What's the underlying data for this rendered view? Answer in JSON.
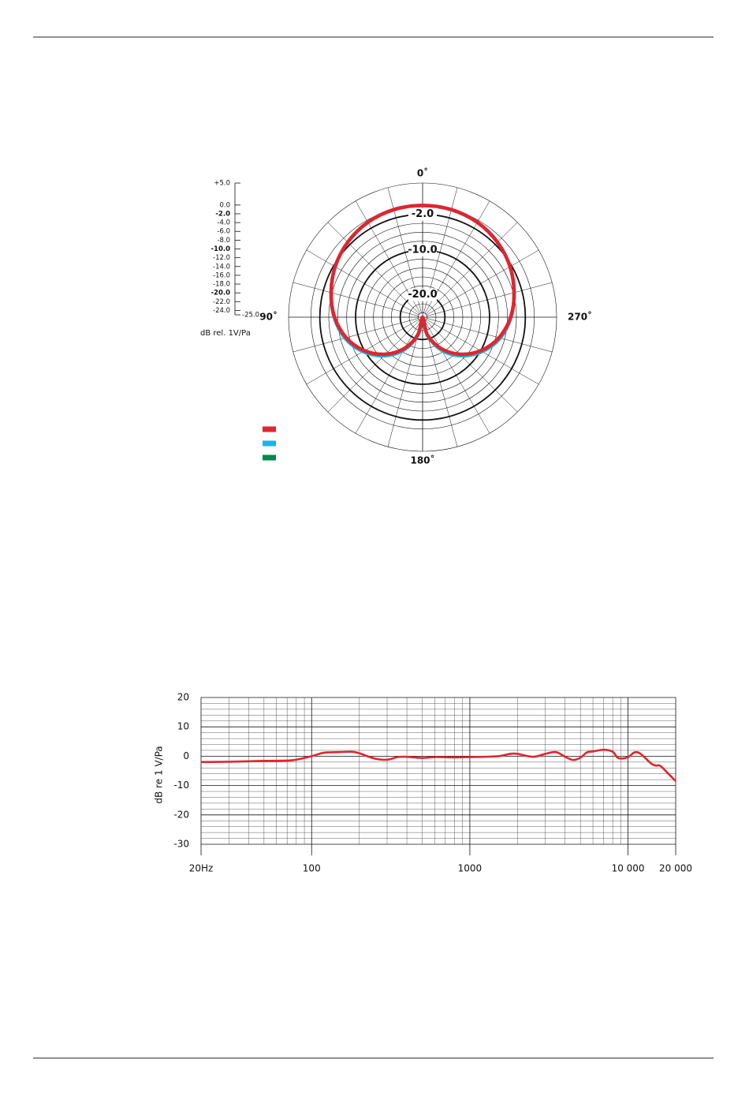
{
  "chart_data": [
    {
      "type": "polar",
      "theta": [
        0,
        15,
        30,
        45,
        60,
        75,
        90,
        105,
        120,
        135,
        150,
        165,
        180,
        195,
        210,
        225,
        240,
        255,
        270,
        285,
        300,
        315,
        330,
        345
      ],
      "rlim": [
        -25,
        5
      ],
      "series": [
        {
          "color": "#e0262e",
          "values": [
            0,
            -0.1,
            -0.5,
            -1.3,
            -2.4,
            -3.8,
            -5.3,
            -7.3,
            -10,
            -13.3,
            -17,
            -21,
            -25,
            -21,
            -17,
            -13.3,
            -10,
            -7.3,
            -5.3,
            -3.8,
            -2.4,
            -1.3,
            -0.5,
            -0.1
          ]
        },
        {
          "color": "#1ab3e6",
          "values": [
            0,
            -0.1,
            -0.5,
            -1.3,
            -2.4,
            -3.8,
            -5.2,
            -7.0,
            -9.6,
            -12.8,
            -16.5,
            -20.8,
            -25,
            -20.8,
            -16.5,
            -12.8,
            -9.6,
            -7.0,
            -5.2,
            -3.8,
            -2.4,
            -1.3,
            -0.5,
            -0.1
          ]
        }
      ],
      "legend": [
        {
          "color": "#e0262e"
        },
        {
          "color": "#1ab3e6"
        },
        {
          "color": "#00884a"
        }
      ],
      "angle_labels": [
        {
          "value": 0,
          "label": "0˚"
        },
        {
          "value": 90,
          "label": "90˚"
        },
        {
          "value": 180,
          "label": "180˚"
        },
        {
          "value": 270,
          "label": "270˚"
        }
      ],
      "rticks": [
        {
          "value": 5,
          "label": "+5.0"
        },
        {
          "value": 0,
          "label": "0.0"
        },
        {
          "value": -2,
          "label": "-2.0"
        },
        {
          "value": -4,
          "label": "-4.0"
        },
        {
          "value": -6,
          "label": "-6.0"
        },
        {
          "value": -8,
          "label": "-8.0"
        },
        {
          "value": -10,
          "label": "-10.0"
        },
        {
          "value": -12,
          "label": "-12.0"
        },
        {
          "value": -14,
          "label": "-14.0"
        },
        {
          "value": -16,
          "label": "-16.0"
        },
        {
          "value": -18,
          "label": "-18.0"
        },
        {
          "value": -20,
          "label": "-20.0"
        },
        {
          "value": -22,
          "label": "-22.0"
        },
        {
          "value": -24,
          "label": "-24.0"
        },
        {
          "value": -25,
          "label": "-25.0"
        }
      ],
      "ring_labels": [
        {
          "value": -2,
          "label": "-2.0"
        },
        {
          "value": -10,
          "label": "-10.0"
        },
        {
          "value": -20,
          "label": "-20.0"
        }
      ],
      "scale_label": "dB rel. 1V/Pa"
    },
    {
      "type": "line",
      "xscale": "log",
      "xlim": [
        20,
        20000
      ],
      "ylim": [
        -30,
        20
      ],
      "xticks": [
        {
          "value": 20,
          "label": "20Hz"
        },
        100,
        1000,
        {
          "value": 10000,
          "label": "10 000"
        },
        {
          "value": 20000,
          "label": "20 000"
        }
      ],
      "yticks": [
        -30,
        -20,
        -10,
        0,
        10,
        20
      ],
      "ylabel": "dB re 1 V/Pa",
      "grid": true,
      "x": [
        20,
        30,
        50,
        70,
        80,
        100,
        120,
        150,
        180,
        200,
        250,
        300,
        350,
        400,
        500,
        600,
        800,
        1000,
        1500,
        1800,
        2000,
        2500,
        3000,
        3500,
        4000,
        4500,
        5000,
        5500,
        6000,
        7000,
        8000,
        8500,
        9000,
        10000,
        11000,
        12000,
        14000,
        15000,
        16000,
        18000,
        20000
      ],
      "series": [
        {
          "color": "#e0262e",
          "values": [
            -2,
            -1.9,
            -1.6,
            -1.5,
            -1.2,
            0,
            1.2,
            1.4,
            1.5,
            1,
            -0.8,
            -1.2,
            -0.3,
            -0.2,
            -0.6,
            -0.3,
            -0.4,
            -0.3,
            0,
            0.8,
            0.8,
            -0.2,
            0.8,
            1.4,
            -0.2,
            -1.3,
            -0.5,
            1.3,
            1.6,
            2.2,
            1.5,
            -0.3,
            -0.8,
            -0.3,
            1.3,
            0.8,
            -2.5,
            -3.2,
            -3.3,
            -6,
            -8.5
          ]
        }
      ]
    }
  ]
}
